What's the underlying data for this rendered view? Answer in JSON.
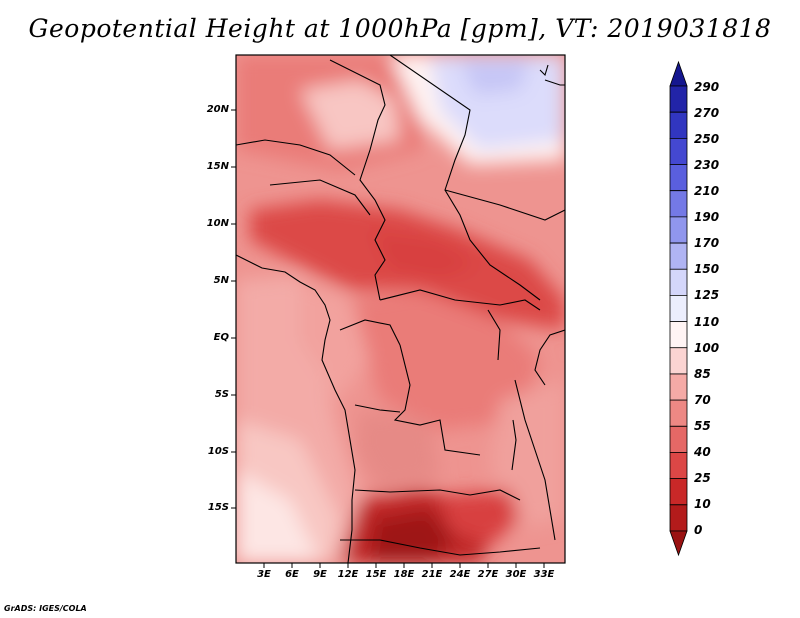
{
  "title": "Geopotential Height at 1000hPa [gpm], VT: 2019031818",
  "credit": "GrADS: IGES/COLA",
  "map": {
    "variable": "Geopotential Height",
    "level": "1000hPa",
    "units": "gpm",
    "valid_time": "2019031818",
    "lat_labels": [
      "20N",
      "15N",
      "10N",
      "5N",
      "EQ",
      "5S",
      "10S",
      "15S"
    ],
    "lon_labels": [
      "3E",
      "6E",
      "9E",
      "12E",
      "15E",
      "18E",
      "21E",
      "24E",
      "27E",
      "30E",
      "33E"
    ]
  },
  "colorbar": {
    "labels": [
      "290",
      "270",
      "250",
      "230",
      "210",
      "190",
      "170",
      "150",
      "125",
      "110",
      "100",
      "85",
      "70",
      "55",
      "40",
      "25",
      "10",
      "0"
    ],
    "colors": [
      "#15178f",
      "#2224a8",
      "#3136c0",
      "#4448d1",
      "#5a5fde",
      "#7479e6",
      "#9096ed",
      "#b0b4f3",
      "#d4d6fa",
      "#eceefd",
      "#fff4f4",
      "#fbd4d2",
      "#f5aaa6",
      "#ed8884",
      "#e56866",
      "#dc4746",
      "#c92828",
      "#b31b1b",
      "#9a1212"
    ]
  }
}
